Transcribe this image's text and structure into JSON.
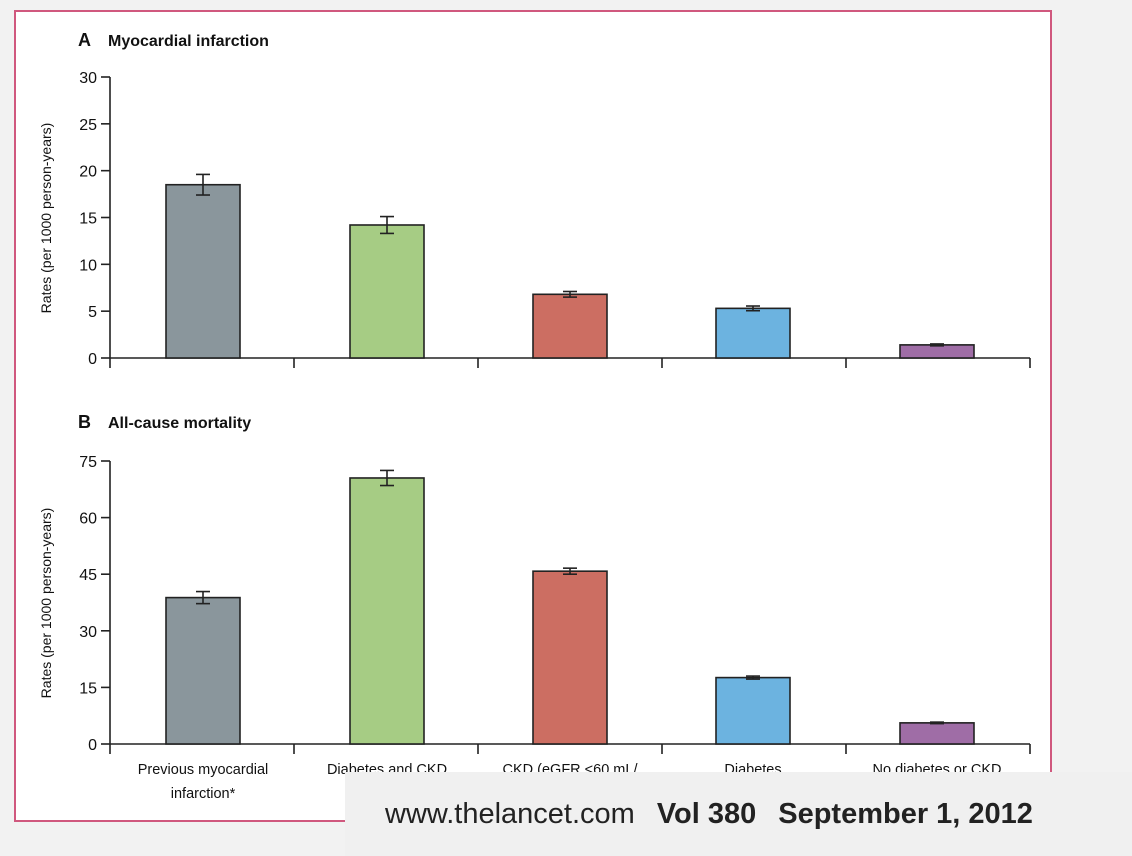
{
  "chart_data": [
    {
      "type": "bar",
      "panel": "A",
      "title": "Myocardial infarction",
      "ylabel": "Rates (per 1000 person-years)",
      "ylim": [
        0,
        30
      ],
      "yticks": [
        0,
        5,
        10,
        15,
        20,
        25,
        30
      ],
      "categories": [
        "Previous myocardial infarction*",
        "Diabetes and CKD",
        "CKD (eGFR <60 mL/",
        "Diabetes",
        "No diabetes or CKD"
      ],
      "values": [
        18.5,
        14.2,
        6.8,
        5.3,
        1.4
      ],
      "errors": [
        1.1,
        0.9,
        0.3,
        0.25,
        0.1
      ],
      "colors": [
        "#8a969c",
        "#a6cc84",
        "#cc6e62",
        "#6cb3e0",
        "#9f6da6"
      ]
    },
    {
      "type": "bar",
      "panel": "B",
      "title": "All-cause mortality",
      "ylabel": "Rates (per 1000 person-years)",
      "ylim": [
        0,
        75
      ],
      "yticks": [
        0,
        15,
        30,
        45,
        60,
        75
      ],
      "categories": [
        "Previous myocardial infarction*",
        "Diabetes and CKD",
        "CKD (eGFR <60 mL/",
        "Diabetes",
        "No diabetes or CKD"
      ],
      "values": [
        38.8,
        70.5,
        45.8,
        17.6,
        5.6
      ],
      "errors": [
        1.6,
        2.0,
        0.8,
        0.4,
        0.2
      ],
      "colors": [
        "#8a969c",
        "#a6cc84",
        "#cc6e62",
        "#6cb3e0",
        "#9f6da6"
      ]
    }
  ],
  "xaxis": {
    "label_lines": [
      [
        "Previous myocardial",
        "infarction*"
      ],
      [
        "Diabetes and CKD"
      ],
      [
        "CKD (eGFR <60 mL/"
      ],
      [
        "Diabetes"
      ],
      [
        "No diabetes or CKD"
      ]
    ]
  },
  "citation": {
    "site": "www.thelancet.com",
    "volume": "Vol 380",
    "date": "September 1, 2012"
  }
}
